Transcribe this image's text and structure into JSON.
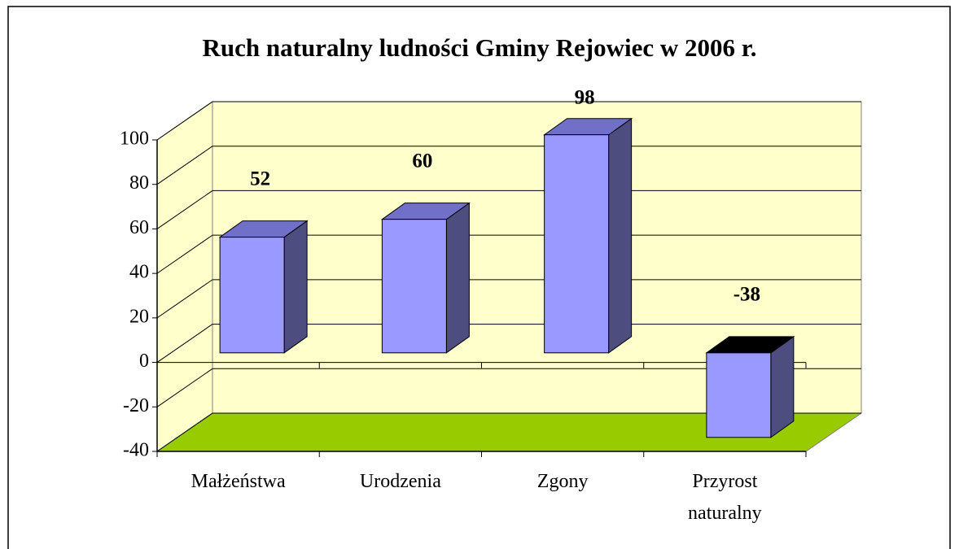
{
  "chart_data": {
    "type": "bar3d",
    "title": "Ruch naturalny ludności Gminy Rejowiec w 2006 r.",
    "categories": [
      "Małżeństwa",
      "Urodzenia",
      "Zgony",
      "Przyrost naturalny"
    ],
    "values": [
      52,
      60,
      98,
      -38
    ],
    "color": "#9999ff",
    "ylim": [
      -40,
      100
    ],
    "yticks": [
      -40,
      -20,
      0,
      20,
      40,
      60,
      80,
      100
    ],
    "grid": true
  }
}
